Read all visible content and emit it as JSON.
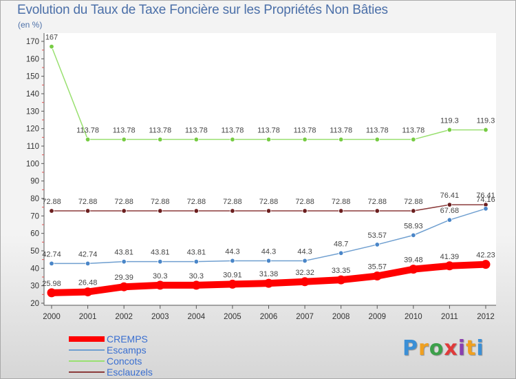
{
  "chart_data": {
    "type": "line",
    "title": "Evolution du Taux de Taxe Foncière sur les Propriétés Non Bâties",
    "unit_label": "(en %)",
    "xlabel": "",
    "ylabel": "(en %)",
    "categories": [
      "2000",
      "2001",
      "2002",
      "2003",
      "2004",
      "2005",
      "2006",
      "2007",
      "2008",
      "2009",
      "2010",
      "2011",
      "2012"
    ],
    "ylim": [
      20,
      170
    ],
    "yticks": [
      20,
      30,
      40,
      50,
      60,
      70,
      80,
      90,
      100,
      110,
      120,
      130,
      140,
      150,
      160,
      170
    ],
    "grid": false,
    "legend_position": "bottom-left",
    "series": [
      {
        "name": "CREMPS",
        "color": "#ff0000",
        "marker_color": "#ff0000",
        "values": [
          25.98,
          26.48,
          29.39,
          30.3,
          30.3,
          30.91,
          31.38,
          32.32,
          33.35,
          35.57,
          39.48,
          41.39,
          42.23
        ],
        "labels": [
          "25.98",
          "26.48",
          "29.39",
          "30.3",
          "30.3",
          "30.91",
          "31.38",
          "32.32",
          "33.35",
          "35.57",
          "39.48",
          "41.39",
          "42.23"
        ]
      },
      {
        "name": "Escamps",
        "color": "#6f9fd0",
        "marker_color": "#4a86c8",
        "values": [
          42.74,
          42.74,
          43.81,
          43.81,
          43.81,
          44.3,
          44.3,
          44.3,
          48.7,
          53.57,
          58.93,
          67.68,
          74.16
        ],
        "labels": [
          "42.74",
          "42.74",
          "43.81",
          "43.81",
          "43.81",
          "44.3",
          "44.3",
          "44.3",
          "48.7",
          "53.57",
          "58.93",
          "67.68",
          "74.16"
        ]
      },
      {
        "name": "Concots",
        "color": "#99e070",
        "marker_color": "#77cc44",
        "values": [
          167,
          113.78,
          113.78,
          113.78,
          113.78,
          113.78,
          113.78,
          113.78,
          113.78,
          113.78,
          113.78,
          119.3,
          119.3
        ],
        "labels": [
          "167",
          "113.78",
          "113.78",
          "113.78",
          "113.78",
          "113.78",
          "113.78",
          "113.78",
          "113.78",
          "113.78",
          "113.78",
          "119.3",
          "119.3"
        ]
      },
      {
        "name": "Esclauzels",
        "color": "#8b3a3a",
        "marker_color": "#6b1f1f",
        "values": [
          72.88,
          72.88,
          72.88,
          72.88,
          72.88,
          72.88,
          72.88,
          72.88,
          72.88,
          72.88,
          72.88,
          76.41,
          76.41
        ],
        "labels": [
          "72.88",
          "72.88",
          "72.88",
          "72.88",
          "72.88",
          "72.88",
          "72.88",
          "72.88",
          "72.88",
          "72.88",
          "72.88",
          "76.41",
          "76.41"
        ]
      }
    ]
  },
  "brand": {
    "letters": [
      "P",
      "r",
      "o",
      "x",
      "i",
      "t",
      "i"
    ],
    "colors": [
      "#3b8fd6",
      "#f0a020",
      "#3ca04a",
      "#e03a3a",
      "#8a3fb0",
      "#f0a020",
      "#3b8fd6"
    ]
  }
}
